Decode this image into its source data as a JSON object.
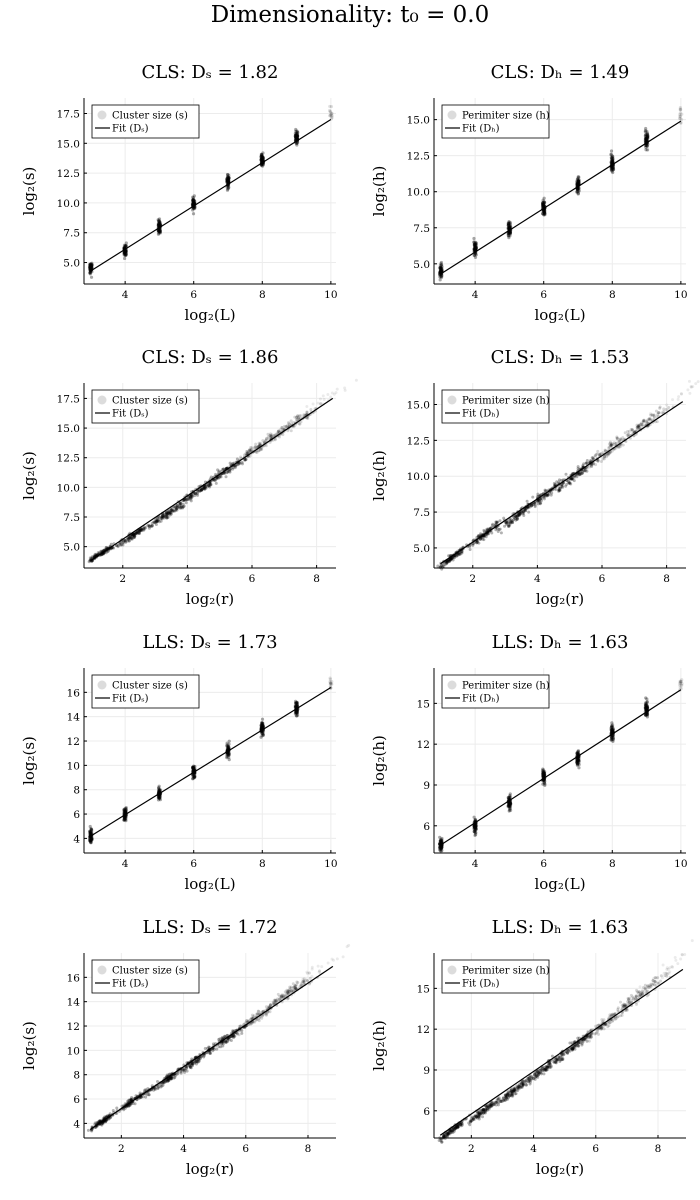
{
  "suptitle": "Dimensionality: t₀ = 0.0",
  "chart_data": [
    {
      "type": "scatter",
      "title": "CLS: Dₛ = 1.82",
      "xlabel": "log₂(L)",
      "ylabel": "log₂(s)",
      "xlim": [
        2.8,
        10.15
      ],
      "ylim": [
        3.2,
        18.8
      ],
      "xticks": [
        4,
        6,
        8,
        10
      ],
      "yticks": [
        5.0,
        7.5,
        10.0,
        12.5,
        15.0,
        17.5
      ],
      "mode": "discrete",
      "cluster_x": [
        3,
        4,
        5,
        6,
        7,
        8,
        9,
        10
      ],
      "cluster_y": [
        4.5,
        6.0,
        8.0,
        9.9,
        11.8,
        13.6,
        15.5,
        17.5
      ],
      "fit": {
        "x": [
          3,
          10
        ],
        "y": [
          4.3,
          17.0
        ]
      },
      "legend": [
        "Cluster size (s)",
        "Fit (Dₛ)"
      ]
    },
    {
      "type": "scatter",
      "title": "CLS: Dₕ = 1.49",
      "xlabel": "log₂(L)",
      "ylabel": "log₂(h)",
      "xlim": [
        2.8,
        10.15
      ],
      "ylim": [
        3.6,
        16.5
      ],
      "xticks": [
        4,
        6,
        8,
        10
      ],
      "yticks": [
        5.0,
        7.5,
        10.0,
        12.5,
        15.0
      ],
      "mode": "discrete",
      "cluster_x": [
        3,
        4,
        5,
        6,
        7,
        8,
        9,
        10
      ],
      "cluster_y": [
        4.4,
        6.0,
        7.4,
        8.9,
        10.4,
        12.0,
        13.6,
        15.4
      ],
      "fit": {
        "x": [
          3,
          10
        ],
        "y": [
          4.3,
          14.9
        ]
      },
      "legend": [
        "Perimiter size (h)",
        "Fit (Dₕ)"
      ]
    },
    {
      "type": "scatter",
      "title": "CLS: Dₛ = 1.86",
      "xlabel": "log₂(r)",
      "ylabel": "log₂(s)",
      "xlim": [
        0.8,
        8.6
      ],
      "ylim": [
        3.2,
        18.8
      ],
      "xticks": [
        2,
        4,
        6,
        8
      ],
      "yticks": [
        5.0,
        7.5,
        10.0,
        12.5,
        15.0,
        17.5
      ],
      "mode": "blobs",
      "cluster_x": [
        1.3,
        2.35,
        3.4,
        4.3,
        5.25,
        6.25,
        7.3,
        8.3
      ],
      "cluster_y": [
        4.4,
        6.0,
        7.8,
        9.6,
        11.5,
        13.5,
        15.4,
        17.5
      ],
      "fit": {
        "x": [
          1.0,
          8.5
        ],
        "y": [
          3.8,
          17.5
        ]
      },
      "legend": [
        "Cluster size (s)",
        "Fit (Dₛ)"
      ]
    },
    {
      "type": "scatter",
      "title": "CLS: Dₕ = 1.53",
      "xlabel": "log₂(r)",
      "ylabel": "log₂(h)",
      "xlim": [
        0.8,
        8.6
      ],
      "ylim": [
        3.6,
        16.5
      ],
      "xticks": [
        2,
        4,
        6,
        8
      ],
      "yticks": [
        5.0,
        7.5,
        10.0,
        12.5,
        15.0
      ],
      "mode": "blobs",
      "cluster_x": [
        1.4,
        2.4,
        3.4,
        4.3,
        5.3,
        6.25,
        7.3,
        8.3
      ],
      "cluster_y": [
        4.4,
        6.0,
        7.3,
        8.8,
        10.3,
        11.9,
        13.6,
        15.4
      ],
      "fit": {
        "x": [
          1.0,
          8.5
        ],
        "y": [
          3.9,
          15.2
        ]
      },
      "legend": [
        "Perimiter size (h)",
        "Fit (Dₕ)"
      ]
    },
    {
      "type": "scatter",
      "title": "LLS: Dₛ = 1.73",
      "xlabel": "log₂(L)",
      "ylabel": "log₂(s)",
      "xlim": [
        2.8,
        10.15
      ],
      "ylim": [
        2.8,
        18.0
      ],
      "xticks": [
        4,
        6,
        8,
        10
      ],
      "yticks": [
        4,
        6,
        8,
        10,
        12,
        14,
        16
      ],
      "mode": "discrete",
      "cluster_x": [
        3,
        4,
        5,
        6,
        7,
        8,
        9,
        10
      ],
      "cluster_y": [
        4.3,
        6.0,
        7.6,
        9.4,
        11.2,
        13.0,
        14.7,
        16.7
      ],
      "fit": {
        "x": [
          3,
          10
        ],
        "y": [
          4.2,
          16.4
        ]
      },
      "legend": [
        "Cluster size (s)",
        "Fit (Dₛ)"
      ]
    },
    {
      "type": "scatter",
      "title": "LLS: Dₕ = 1.63",
      "xlabel": "log₂(L)",
      "ylabel": "log₂(h)",
      "xlim": [
        2.8,
        10.15
      ],
      "ylim": [
        4.0,
        17.6
      ],
      "xticks": [
        4,
        6,
        8,
        10
      ],
      "yticks": [
        6,
        9,
        12,
        15
      ],
      "mode": "discrete",
      "cluster_x": [
        3,
        4,
        5,
        6,
        7,
        8,
        9,
        10
      ],
      "cluster_y": [
        4.6,
        6.0,
        7.7,
        9.6,
        11.0,
        12.8,
        14.6,
        16.4
      ],
      "fit": {
        "x": [
          3,
          10
        ],
        "y": [
          4.6,
          16.0
        ]
      },
      "legend": [
        "Perimiter size (h)",
        "Fit (Dₕ)"
      ]
    },
    {
      "type": "scatter",
      "title": "LLS: Dₛ = 1.72",
      "xlabel": "log₂(r)",
      "ylabel": "log₂(s)",
      "xlim": [
        0.8,
        8.9
      ],
      "ylim": [
        2.8,
        18.0
      ],
      "xticks": [
        2,
        4,
        6,
        8
      ],
      "yticks": [
        4,
        6,
        8,
        10,
        12,
        14,
        16
      ],
      "mode": "blobs",
      "cluster_x": [
        1.4,
        2.4,
        3.4,
        4.4,
        5.4,
        6.4,
        7.4,
        8.4
      ],
      "cluster_y": [
        4.2,
        5.9,
        7.5,
        9.2,
        11.0,
        12.8,
        14.8,
        16.8
      ],
      "fit": {
        "x": [
          1.0,
          8.8
        ],
        "y": [
          3.5,
          16.9
        ]
      },
      "legend": [
        "Cluster size (s)",
        "Fit (Dₛ)"
      ]
    },
    {
      "type": "scatter",
      "title": "LLS: Dₕ = 1.63",
      "xlabel": "log₂(r)",
      "ylabel": "log₂(h)",
      "xlim": [
        0.8,
        8.9
      ],
      "ylim": [
        4.0,
        17.6
      ],
      "xticks": [
        2,
        4,
        6,
        8
      ],
      "yticks": [
        6,
        9,
        12,
        15
      ],
      "mode": "blobs",
      "cluster_x": [
        1.4,
        2.4,
        3.4,
        4.4,
        5.4,
        6.4,
        7.4,
        8.4
      ],
      "cluster_y": [
        4.6,
        6.0,
        7.5,
        9.2,
        10.9,
        12.6,
        14.5,
        16.6
      ],
      "fit": {
        "x": [
          1.0,
          8.8
        ],
        "y": [
          4.2,
          16.4
        ]
      },
      "legend": [
        "Perimiter size (h)",
        "Fit (Dₕ)"
      ]
    }
  ]
}
